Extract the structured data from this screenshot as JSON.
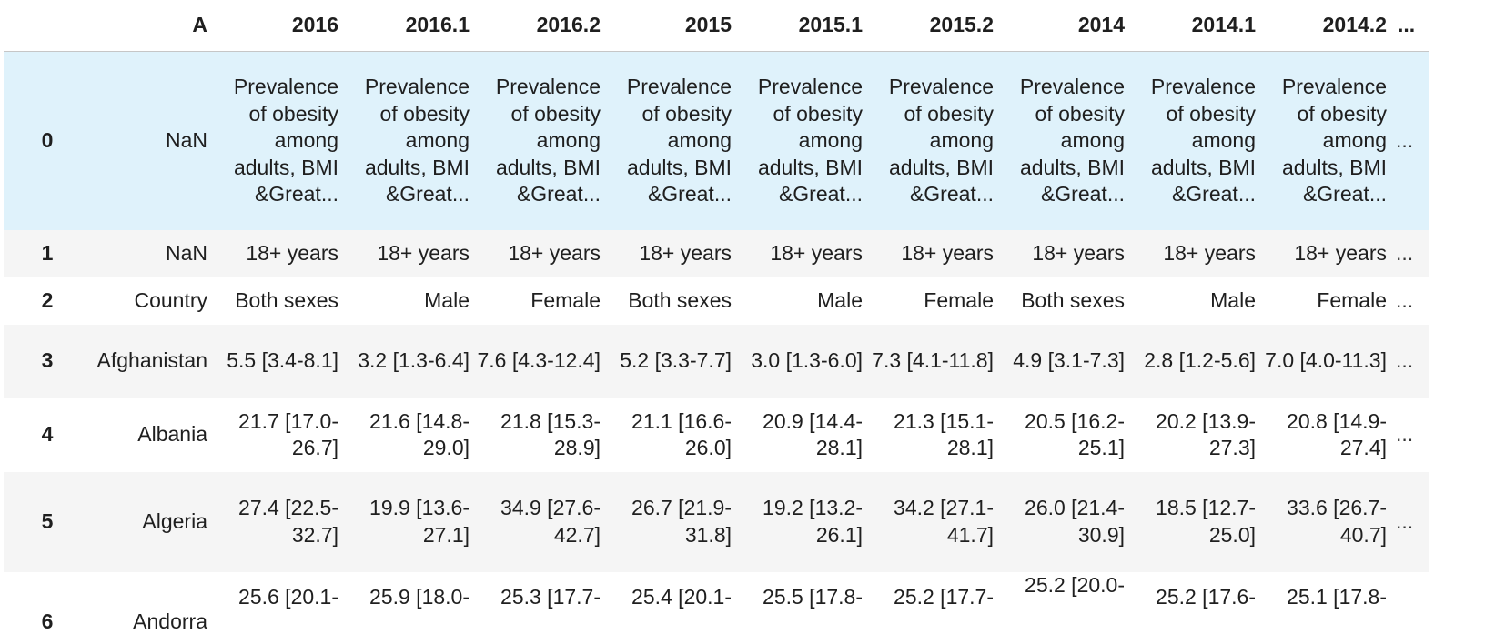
{
  "table": {
    "index_header": "A",
    "columns": [
      "2016",
      "2016.1",
      "2016.2",
      "2015",
      "2015.1",
      "2015.2",
      "2014",
      "2014.1",
      "2014.2"
    ],
    "truncation_marker": "...",
    "rows": [
      {
        "index": "0",
        "label": "NaN",
        "cells": [
          "Prevalence of obesity among adults, BMI &Great...",
          "Prevalence of obesity among adults, BMI &Great...",
          "Prevalence of obesity among adults, BMI &Great...",
          "Prevalence of obesity among adults, BMI &Great...",
          "Prevalence of obesity among adults, BMI &Great...",
          "Prevalence of obesity among adults, BMI &Great...",
          "Prevalence of obesity among adults, BMI &Great...",
          "Prevalence of obesity among adults, BMI &Great...",
          "Prevalence of obesity among adults, BMI &Great..."
        ],
        "more": "..."
      },
      {
        "index": "1",
        "label": "NaN",
        "cells": [
          "18+ years",
          "18+ years",
          "18+ years",
          "18+ years",
          "18+ years",
          "18+ years",
          "18+ years",
          "18+ years",
          "18+ years"
        ],
        "more": "..."
      },
      {
        "index": "2",
        "label": "Country",
        "cells": [
          "Both sexes",
          "Male",
          "Female",
          "Both sexes",
          "Male",
          "Female",
          "Both sexes",
          "Male",
          "Female"
        ],
        "more": "..."
      },
      {
        "index": "3",
        "label": "Afghanistan",
        "cells": [
          "5.5 [3.4-8.1]",
          "3.2 [1.3-6.4]",
          "7.6 [4.3-12.4]",
          "5.2 [3.3-7.7]",
          "3.0 [1.3-6.0]",
          "7.3 [4.1-11.8]",
          "4.9 [3.1-7.3]",
          "2.8 [1.2-5.6]",
          "7.0 [4.0-11.3]"
        ],
        "more": "..."
      },
      {
        "index": "4",
        "label": "Albania",
        "cells": [
          "21.7 [17.0-26.7]",
          "21.6 [14.8-29.0]",
          "21.8 [15.3-28.9]",
          "21.1 [16.6-26.0]",
          "20.9 [14.4-28.1]",
          "21.3 [15.1-28.1]",
          "20.5 [16.2-25.1]",
          "20.2 [13.9-27.3]",
          "20.8 [14.9-27.4]"
        ],
        "more": "..."
      },
      {
        "index": "5",
        "label": "Algeria",
        "cells": [
          "27.4 [22.5-32.7]",
          "19.9 [13.6-27.1]",
          "34.9 [27.6-42.7]",
          "26.7 [21.9-31.8]",
          "19.2 [13.2-26.1]",
          "34.2 [27.1-41.7]",
          "26.0 [21.4-30.9]",
          "18.5 [12.7-25.0]",
          "33.6 [26.7-40.7]"
        ],
        "more": "..."
      },
      {
        "index": "6",
        "label": "Andorra",
        "cells": [
          "25.6 [20.1-",
          "25.9 [18.0-",
          "25.3 [17.7-",
          "25.4 [20.1-",
          "25.5 [17.8-",
          "25.2 [17.7-",
          "25.2 [20.0-",
          "25.2 [17.6-",
          "25.1 [17.8-"
        ],
        "more": ""
      }
    ]
  }
}
